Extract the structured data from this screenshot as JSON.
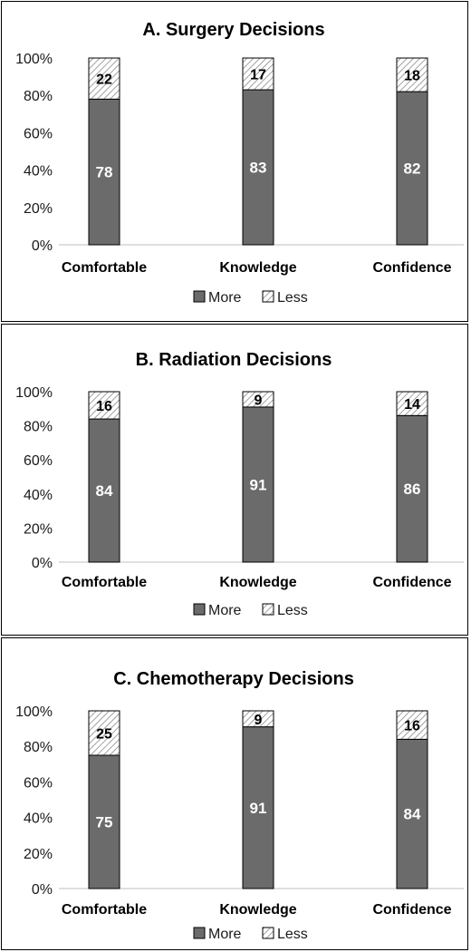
{
  "chart_data": [
    {
      "type": "bar",
      "stacked": true,
      "title": "A. Surgery Decisions",
      "categories": [
        "Comfortable",
        "Knowledge",
        "Confidence"
      ],
      "series": [
        {
          "name": "More",
          "values": [
            78,
            83,
            82
          ],
          "color": "#6b6b6b",
          "pattern": "solid"
        },
        {
          "name": "Less",
          "values": [
            22,
            17,
            18
          ],
          "color": "#ffffff",
          "pattern": "diagonal-hatch"
        }
      ],
      "yticks": [
        "0%",
        "20%",
        "40%",
        "60%",
        "80%",
        "100%"
      ],
      "ylim": [
        0,
        100
      ],
      "grid": false,
      "legend_position": "bottom"
    },
    {
      "type": "bar",
      "stacked": true,
      "title": "B. Radiation Decisions",
      "categories": [
        "Comfortable",
        "Knowledge",
        "Confidence"
      ],
      "series": [
        {
          "name": "More",
          "values": [
            84,
            91,
            86
          ],
          "color": "#6b6b6b",
          "pattern": "solid"
        },
        {
          "name": "Less",
          "values": [
            16,
            9,
            14
          ],
          "color": "#ffffff",
          "pattern": "diagonal-hatch"
        }
      ],
      "yticks": [
        "0%",
        "20%",
        "40%",
        "60%",
        "80%",
        "100%"
      ],
      "ylim": [
        0,
        100
      ],
      "grid": false,
      "legend_position": "bottom"
    },
    {
      "type": "bar",
      "stacked": true,
      "title": "C. Chemotherapy Decisions",
      "categories": [
        "Comfortable",
        "Knowledge",
        "Confidence"
      ],
      "series": [
        {
          "name": "More",
          "values": [
            75,
            91,
            84
          ],
          "color": "#6b6b6b",
          "pattern": "solid"
        },
        {
          "name": "Less",
          "values": [
            25,
            9,
            16
          ],
          "color": "#ffffff",
          "pattern": "diagonal-hatch"
        }
      ],
      "yticks": [
        "0%",
        "20%",
        "40%",
        "60%",
        "80%",
        "100%"
      ],
      "ylim": [
        0,
        100
      ],
      "grid": false,
      "legend_position": "bottom"
    }
  ]
}
